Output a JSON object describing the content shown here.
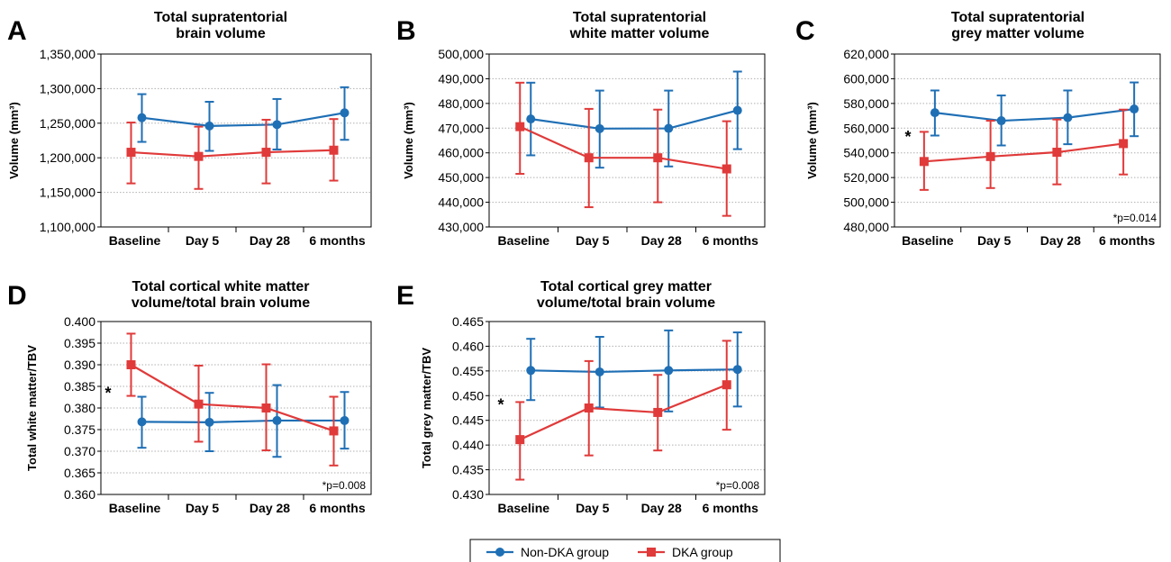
{
  "colors": {
    "non_dka": "#1f6fb5",
    "dka": "#e03a3a",
    "grid": "#b0b0b0",
    "axis": "#000000"
  },
  "legend": {
    "series_labels": [
      "Non-DKA group",
      "DKA group"
    ]
  },
  "chart_data": [
    {
      "panel": "A",
      "type": "line",
      "title_lines": [
        "Total supratentorial",
        "brain volume"
      ],
      "ylabel": "Volume (mm³)",
      "categories": [
        "Baseline",
        "Day 5",
        "Day 28",
        "6 months"
      ],
      "ylim": [
        1100000,
        1350000
      ],
      "yticks": [
        1100000,
        1150000,
        1200000,
        1250000,
        1300000,
        1350000
      ],
      "ytick_labels": [
        "1,100,000",
        "1,150,000",
        "1,200,000",
        "1,250,000",
        "1,300,000",
        "1,350,000"
      ],
      "series": [
        {
          "name": "Non-DKA group",
          "values": [
            1258000,
            1246000,
            1248000,
            1265000
          ],
          "err_low": [
            1223000,
            1210000,
            1212000,
            1226000
          ],
          "err_high": [
            1292000,
            1281000,
            1285000,
            1302000
          ]
        },
        {
          "name": "DKA group",
          "values": [
            1208000,
            1202000,
            1208000,
            1211000
          ],
          "err_low": [
            1163000,
            1155000,
            1163000,
            1167000
          ],
          "err_high": [
            1251000,
            1245000,
            1255000,
            1256000
          ]
        }
      ],
      "star_text": "",
      "p_text": ""
    },
    {
      "panel": "B",
      "type": "line",
      "title_lines": [
        "Total supratentorial",
        "white matter volume"
      ],
      "ylabel": "Volume (mm³)",
      "categories": [
        "Baseline",
        "Day 5",
        "Day 28",
        "6 months"
      ],
      "ylim": [
        430000,
        500000
      ],
      "yticks": [
        430000,
        440000,
        450000,
        460000,
        470000,
        480000,
        490000,
        500000
      ],
      "ytick_labels": [
        "430,000",
        "440,000",
        "450,000",
        "460,000",
        "470,000",
        "480,000",
        "490,000",
        "500,000"
      ],
      "series": [
        {
          "name": "Non-DKA group",
          "values": [
            473700,
            469800,
            469900,
            477200
          ],
          "err_low": [
            459000,
            454000,
            454500,
            461500
          ],
          "err_high": [
            488400,
            485200,
            485200,
            492900
          ]
        },
        {
          "name": "DKA group",
          "values": [
            470600,
            458000,
            458000,
            453500
          ],
          "err_low": [
            451500,
            438000,
            440000,
            434500
          ],
          "err_high": [
            488400,
            477800,
            477500,
            472800
          ]
        }
      ],
      "star_text": "",
      "p_text": ""
    },
    {
      "panel": "C",
      "type": "line",
      "title_lines": [
        "Total supratentorial",
        "grey matter volume"
      ],
      "ylabel": "Volume (mm³)",
      "categories": [
        "Baseline",
        "Day 5",
        "Day 28",
        "6 months"
      ],
      "ylim": [
        480000,
        620000
      ],
      "yticks": [
        480000,
        500000,
        520000,
        540000,
        560000,
        580000,
        600000,
        620000
      ],
      "ytick_labels": [
        "480,000",
        "500,000",
        "520,000",
        "540,000",
        "560,000",
        "580,000",
        "600,000",
        "620,000"
      ],
      "series": [
        {
          "name": "Non-DKA group",
          "values": [
            572500,
            566000,
            568500,
            575500
          ],
          "err_low": [
            554000,
            546000,
            547000,
            553500
          ],
          "err_high": [
            590500,
            586500,
            590500,
            597000
          ]
        },
        {
          "name": "DKA group",
          "values": [
            533000,
            537000,
            540500,
            547500
          ],
          "err_low": [
            510000,
            511500,
            514500,
            522500
          ],
          "err_high": [
            557000,
            566000,
            567000,
            575000
          ]
        }
      ],
      "star_text": "*",
      "p_text": "*p=0.014"
    },
    {
      "panel": "D",
      "type": "line",
      "title_lines": [
        "Total cortical white matter",
        "volume/total brain volume"
      ],
      "ylabel": "Total white matter/TBV",
      "categories": [
        "Baseline",
        "Day 5",
        "Day 28",
        "6 months"
      ],
      "ylim": [
        0.36,
        0.4
      ],
      "yticks": [
        0.36,
        0.365,
        0.37,
        0.375,
        0.38,
        0.385,
        0.39,
        0.395,
        0.4
      ],
      "ytick_labels": [
        "0.360",
        "0.365",
        "0.370",
        "0.375",
        "0.380",
        "0.385",
        "0.390",
        "0.395",
        "0.400"
      ],
      "series": [
        {
          "name": "Non-DKA group",
          "values": [
            0.3768,
            0.3767,
            0.3771,
            0.3771
          ],
          "err_low": [
            0.3708,
            0.37,
            0.3687,
            0.3706
          ],
          "err_high": [
            0.3826,
            0.3835,
            0.3853,
            0.3837
          ]
        },
        {
          "name": "DKA group",
          "values": [
            0.39,
            0.3809,
            0.38,
            0.3747
          ],
          "err_low": [
            0.3828,
            0.3722,
            0.3702,
            0.3667
          ],
          "err_high": [
            0.3972,
            0.3898,
            0.3901,
            0.3826
          ]
        }
      ],
      "star_text": "*",
      "p_text": "*p=0.008"
    },
    {
      "panel": "E",
      "type": "line",
      "title_lines": [
        "Total cortical grey matter",
        "volume/total brain volume"
      ],
      "ylabel": "Total grey matter/TBV",
      "categories": [
        "Baseline",
        "Day 5",
        "Day 28",
        "6 months"
      ],
      "ylim": [
        0.43,
        0.465
      ],
      "yticks": [
        0.43,
        0.435,
        0.44,
        0.445,
        0.45,
        0.455,
        0.46,
        0.465
      ],
      "ytick_labels": [
        "0.430",
        "0.435",
        "0.440",
        "0.445",
        "0.450",
        "0.455",
        "0.460",
        "0.465"
      ],
      "series": [
        {
          "name": "Non-DKA group",
          "values": [
            0.4551,
            0.4548,
            0.4551,
            0.4553
          ],
          "err_low": [
            0.4491,
            0.4476,
            0.4468,
            0.4478
          ],
          "err_high": [
            0.4615,
            0.4619,
            0.4632,
            0.4628
          ]
        },
        {
          "name": "DKA group",
          "values": [
            0.4411,
            0.4475,
            0.4466,
            0.4522
          ],
          "err_low": [
            0.433,
            0.4379,
            0.4389,
            0.4431
          ],
          "err_high": [
            0.4487,
            0.457,
            0.4542,
            0.4611
          ]
        }
      ],
      "star_text": "*",
      "p_text": "*p=0.008"
    }
  ]
}
